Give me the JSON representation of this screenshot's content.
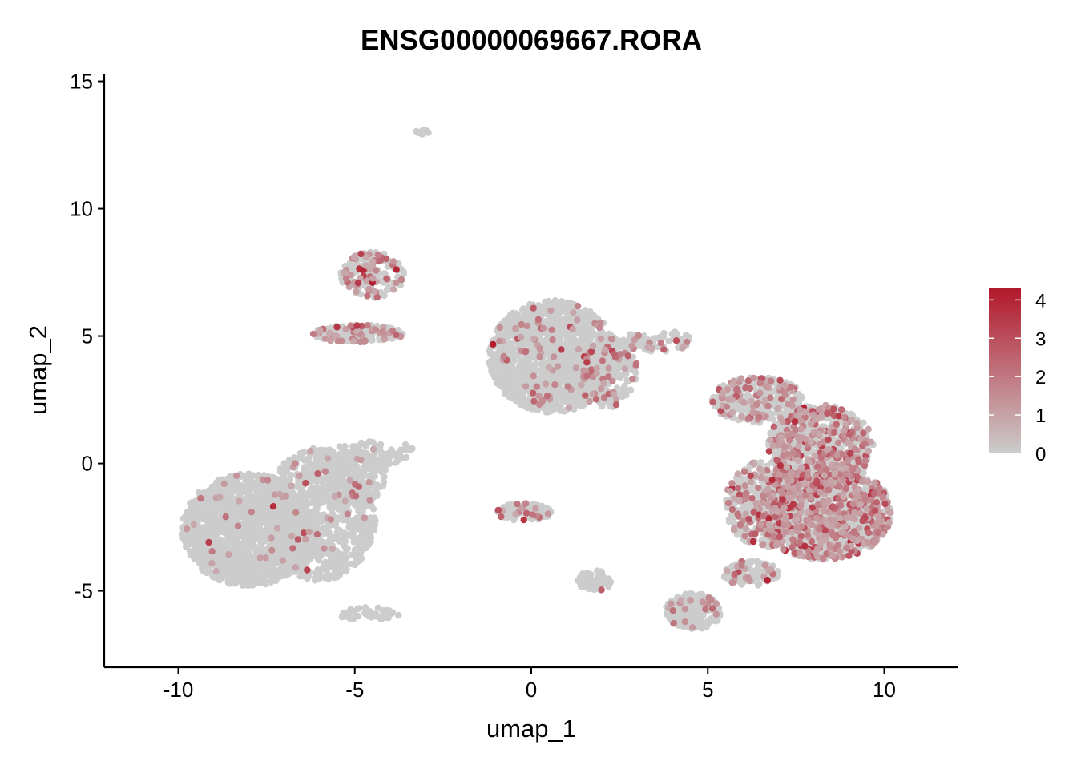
{
  "chart_data": {
    "type": "scatter",
    "title": "ENSG00000069667.RORA",
    "xlabel": "umap_1",
    "ylabel": "umap_2",
    "xlim": [
      -12.1,
      12.1
    ],
    "ylim": [
      -8.0,
      15.3
    ],
    "x_ticks": [
      -10,
      -5,
      0,
      5,
      10
    ],
    "x_tick_labels": [
      "-10",
      "-5",
      "0",
      "5",
      "10"
    ],
    "y_ticks": [
      -5,
      0,
      5,
      10,
      15
    ],
    "y_tick_labels": [
      "-5",
      "0",
      "5",
      "10",
      "15"
    ],
    "grid": false,
    "legend": {
      "placement": "right",
      "type": "colorbar",
      "min": 0,
      "max": 4.3,
      "ticks": [
        0,
        1,
        2,
        3,
        4
      ],
      "tick_labels": [
        "0",
        "1",
        "2",
        "3",
        "4"
      ],
      "low_color": "#CCCCCC",
      "high_color": "#B2182B"
    },
    "clusters": [
      {
        "cx": -8.0,
        "cy": -2.6,
        "rx": 1.9,
        "ry": 2.2,
        "n": 1500,
        "expr_frac": 0.02
      },
      {
        "cx": -6.0,
        "cy": -2.0,
        "rx": 1.6,
        "ry": 2.6,
        "n": 900,
        "expr_frac": 0.03
      },
      {
        "cx": -5.2,
        "cy": -0.5,
        "rx": 1.1,
        "ry": 1.2,
        "n": 250,
        "expr_frac": 0.04
      },
      {
        "cx": -4.3,
        "cy": 0.4,
        "rx": 1.0,
        "ry": 0.5,
        "n": 80,
        "expr_frac": 0.04
      },
      {
        "cx": -4.6,
        "cy": -5.9,
        "rx": 0.9,
        "ry": 0.25,
        "n": 45,
        "expr_frac": 0.0
      },
      {
        "cx": -4.9,
        "cy": 5.1,
        "rx": 1.3,
        "ry": 0.35,
        "n": 170,
        "expr_frac": 0.25
      },
      {
        "cx": -4.5,
        "cy": 7.4,
        "rx": 0.9,
        "ry": 0.9,
        "n": 180,
        "expr_frac": 0.3
      },
      {
        "cx": -3.1,
        "cy": 13.0,
        "rx": 0.2,
        "ry": 0.12,
        "n": 10,
        "expr_frac": 0.0
      },
      {
        "cx": 0.6,
        "cy": 4.2,
        "rx": 1.8,
        "ry": 2.2,
        "n": 1400,
        "expr_frac": 0.06
      },
      {
        "cx": 2.2,
        "cy": 3.6,
        "rx": 0.8,
        "ry": 1.4,
        "n": 250,
        "expr_frac": 0.15
      },
      {
        "cx": 3.6,
        "cy": 4.8,
        "rx": 1.0,
        "ry": 0.45,
        "n": 70,
        "expr_frac": 0.2
      },
      {
        "cx": 6.4,
        "cy": 2.5,
        "rx": 1.3,
        "ry": 0.9,
        "n": 320,
        "expr_frac": 0.25
      },
      {
        "cx": 8.2,
        "cy": 0.7,
        "rx": 1.5,
        "ry": 1.6,
        "n": 750,
        "expr_frac": 0.3
      },
      {
        "cx": 8.3,
        "cy": -1.9,
        "rx": 1.9,
        "ry": 1.9,
        "n": 1300,
        "expr_frac": 0.35
      },
      {
        "cx": 6.6,
        "cy": -1.6,
        "rx": 1.1,
        "ry": 1.7,
        "n": 450,
        "expr_frac": 0.33
      },
      {
        "cx": 6.2,
        "cy": -4.3,
        "rx": 0.8,
        "ry": 0.5,
        "n": 120,
        "expr_frac": 0.1
      },
      {
        "cx": 4.6,
        "cy": -5.8,
        "rx": 0.8,
        "ry": 0.7,
        "n": 230,
        "expr_frac": 0.08
      },
      {
        "cx": -0.2,
        "cy": -1.9,
        "rx": 0.8,
        "ry": 0.35,
        "n": 110,
        "expr_frac": 0.15
      },
      {
        "cx": 1.8,
        "cy": -4.6,
        "rx": 0.5,
        "ry": 0.4,
        "n": 60,
        "expr_frac": 0.05
      }
    ]
  }
}
